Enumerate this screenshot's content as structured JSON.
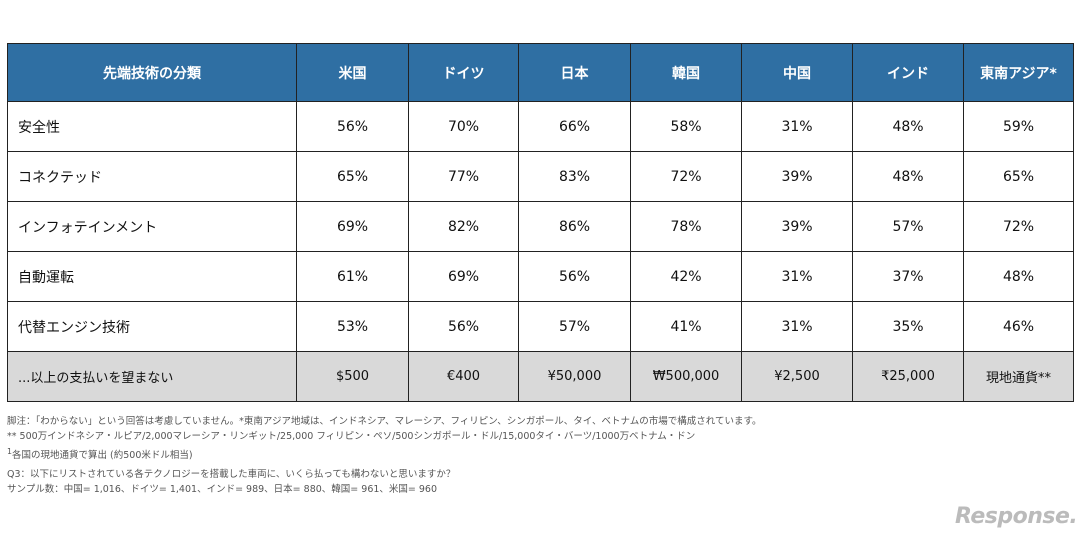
{
  "table": {
    "headers": [
      "先端技術の分類",
      "米国",
      "ドイツ",
      "日本",
      "韓国",
      "中国",
      "インド",
      "東南アジア*"
    ],
    "rows": [
      [
        "安全性",
        "56%",
        "70%",
        "66%",
        "58%",
        "31%",
        "48%",
        "59%"
      ],
      [
        "コネクテッド",
        "65%",
        "77%",
        "83%",
        "72%",
        "39%",
        "48%",
        "65%"
      ],
      [
        "インフォテインメント",
        "69%",
        "82%",
        "86%",
        "78%",
        "39%",
        "57%",
        "72%"
      ],
      [
        "自動運転",
        "61%",
        "69%",
        "56%",
        "42%",
        "31%",
        "37%",
        "48%"
      ],
      [
        "代替エンジン技術",
        "53%",
        "56%",
        "57%",
        "41%",
        "31%",
        "35%",
        "46%"
      ],
      [
        "...以上の支払いを望まない",
        "$500",
        "€400",
        "¥50,000",
        "₩500,000",
        "¥2,500",
        "₹25,000",
        "現地通貨**"
      ]
    ],
    "header_color": "#2f6fa3",
    "highlight_row_color": "#d9d9d9"
  },
  "notes": {
    "line1": "脚注：「わからない」という回答は考慮していません。*東南アジア地域は、インドネシア、マレーシア、フィリピン、シンガポール、タイ、ベトナムの市場で構成されています。",
    "line2": "** 500万インドネシア・ルピア/2,000マレーシア・リンギット/25,000 フィリピン・ペソ/500シンガポール・ドル/15,000タイ・バーツ/1000万ベトナム・ドン",
    "line3_sup": "1",
    "line3": "各国の現地通貨で算出 (約500米ドル相当)",
    "line4": "Q3：以下にリストされている各テクノロジーを搭載した車両に、いくら払っても構わないと思いますか？",
    "line5": "サンプル数：中国= 1,016、ドイツ= 1,401、インド= 989、日本= 880、韓国= 961、米国= 960"
  },
  "logo": "Response."
}
